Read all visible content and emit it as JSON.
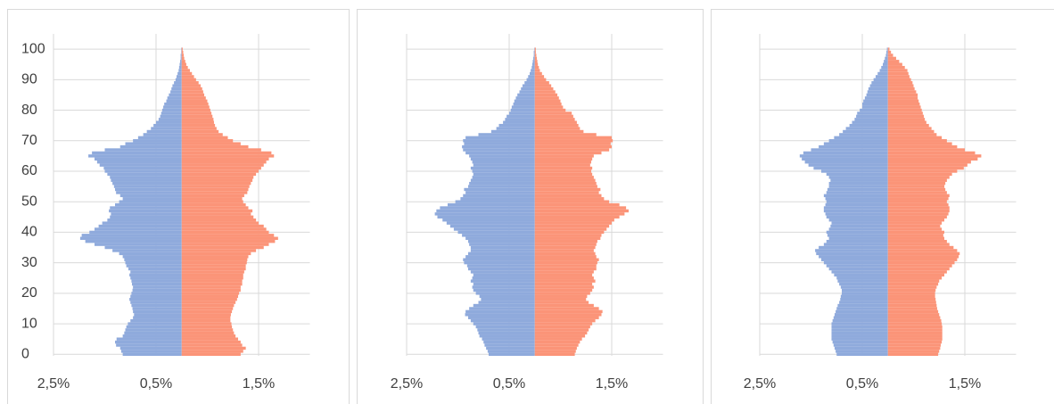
{
  "chart_data": [
    {
      "type": "bar",
      "orientation": "horizontal",
      "y": [
        0,
        1,
        2,
        3,
        4,
        5,
        6,
        7,
        8,
        9,
        10,
        11,
        12,
        13,
        14,
        15,
        16,
        17,
        18,
        19,
        20,
        21,
        22,
        23,
        24,
        25,
        26,
        27,
        28,
        29,
        30,
        31,
        32,
        33,
        34,
        35,
        36,
        37,
        38,
        39,
        40,
        41,
        42,
        43,
        44,
        45,
        46,
        47,
        48,
        49,
        50,
        51,
        52,
        53,
        54,
        55,
        56,
        57,
        58,
        59,
        60,
        61,
        62,
        63,
        64,
        65,
        66,
        67,
        68,
        69,
        70,
        71,
        72,
        73,
        74,
        75,
        76,
        77,
        78,
        79,
        80,
        81,
        82,
        83,
        84,
        85,
        86,
        87,
        88,
        89,
        90,
        91,
        92,
        93,
        94,
        95,
        96,
        97,
        98,
        99,
        100
      ],
      "series": [
        {
          "color": "#8faadc",
          "values": [
            -1.15,
            -1.18,
            -1.2,
            -1.28,
            -1.3,
            -1.27,
            -1.15,
            -1.12,
            -1.1,
            -1.08,
            -1.05,
            -1.0,
            -0.95,
            -0.93,
            -0.95,
            -0.96,
            -0.98,
            -1.0,
            -1.02,
            -1.0,
            -0.98,
            -0.96,
            -0.95,
            -0.97,
            -0.98,
            -1.0,
            -1.02,
            -1.0,
            -1.04,
            -1.08,
            -1.1,
            -1.12,
            -1.15,
            -1.22,
            -1.35,
            -1.5,
            -1.7,
            -1.88,
            -1.98,
            -1.95,
            -1.8,
            -1.7,
            -1.62,
            -1.55,
            -1.45,
            -1.4,
            -1.38,
            -1.42,
            -1.4,
            -1.3,
            -1.22,
            -1.15,
            -1.2,
            -1.28,
            -1.3,
            -1.32,
            -1.35,
            -1.38,
            -1.4,
            -1.45,
            -1.5,
            -1.52,
            -1.6,
            -1.65,
            -1.7,
            -1.82,
            -1.75,
            -1.5,
            -1.2,
            -1.1,
            -0.95,
            -0.85,
            -0.75,
            -0.68,
            -0.6,
            -0.55,
            -0.5,
            -0.45,
            -0.42,
            -0.4,
            -0.38,
            -0.36,
            -0.34,
            -0.3,
            -0.28,
            -0.25,
            -0.22,
            -0.2,
            -0.18,
            -0.15,
            -0.12,
            -0.1,
            -0.08,
            -0.06,
            -0.05,
            -0.04,
            -0.03,
            -0.02,
            -0.02,
            -0.01,
            -0.01
          ]
        },
        {
          "color": "#fb9478",
          "values": [
            1.15,
            1.2,
            1.25,
            1.18,
            1.15,
            1.1,
            1.05,
            1.02,
            1.0,
            0.98,
            0.97,
            0.95,
            0.95,
            0.96,
            0.98,
            1.0,
            1.02,
            1.05,
            1.08,
            1.1,
            1.12,
            1.15,
            1.15,
            1.18,
            1.18,
            1.2,
            1.2,
            1.22,
            1.25,
            1.25,
            1.27,
            1.28,
            1.3,
            1.35,
            1.45,
            1.6,
            1.7,
            1.82,
            1.88,
            1.8,
            1.7,
            1.65,
            1.6,
            1.5,
            1.45,
            1.4,
            1.35,
            1.38,
            1.3,
            1.25,
            1.2,
            1.18,
            1.22,
            1.28,
            1.3,
            1.32,
            1.35,
            1.38,
            1.4,
            1.45,
            1.5,
            1.55,
            1.6,
            1.65,
            1.7,
            1.8,
            1.75,
            1.55,
            1.3,
            1.15,
            1.0,
            0.9,
            0.8,
            0.72,
            0.68,
            0.65,
            0.63,
            0.62,
            0.6,
            0.58,
            0.56,
            0.54,
            0.52,
            0.5,
            0.47,
            0.44,
            0.42,
            0.4,
            0.37,
            0.33,
            0.28,
            0.24,
            0.2,
            0.16,
            0.12,
            0.09,
            0.07,
            0.05,
            0.04,
            0.03,
            0.02
          ]
        }
      ],
      "xlim": [
        -2.5,
        2.5
      ],
      "xticks": [
        {
          "value": -2.5,
          "label": "2,5%"
        },
        {
          "value": -0.5,
          "label": "0,5%"
        },
        {
          "value": 1.5,
          "label": "1,5%"
        }
      ],
      "ylim": [
        -0.5,
        105
      ],
      "yticks": [
        0,
        10,
        20,
        30,
        40,
        50,
        60,
        70,
        80,
        90,
        100
      ],
      "show_ytick_labels": true,
      "grid": true
    },
    {
      "type": "bar",
      "orientation": "horizontal",
      "y": [
        0,
        1,
        2,
        3,
        4,
        5,
        6,
        7,
        8,
        9,
        10,
        11,
        12,
        13,
        14,
        15,
        16,
        17,
        18,
        19,
        20,
        21,
        22,
        23,
        24,
        25,
        26,
        27,
        28,
        29,
        30,
        31,
        32,
        33,
        34,
        35,
        36,
        37,
        38,
        39,
        40,
        41,
        42,
        43,
        44,
        45,
        46,
        47,
        48,
        49,
        50,
        51,
        52,
        53,
        54,
        55,
        56,
        57,
        58,
        59,
        60,
        61,
        62,
        63,
        64,
        65,
        66,
        67,
        68,
        69,
        70,
        71,
        72,
        73,
        74,
        75,
        76,
        77,
        78,
        79,
        80,
        81,
        82,
        83,
        84,
        85,
        86,
        87,
        88,
        89,
        90,
        91,
        92,
        93,
        94,
        95,
        96,
        97,
        98,
        99,
        100
      ],
      "series": [
        {
          "color": "#8faadc",
          "values": [
            -0.9,
            -0.92,
            -0.95,
            -0.98,
            -1.0,
            -1.03,
            -1.08,
            -1.1,
            -1.12,
            -1.15,
            -1.2,
            -1.25,
            -1.3,
            -1.36,
            -1.35,
            -1.28,
            -1.2,
            -1.1,
            -1.05,
            -1.08,
            -1.15,
            -1.2,
            -1.22,
            -1.2,
            -1.25,
            -1.22,
            -1.2,
            -1.25,
            -1.3,
            -1.32,
            -1.38,
            -1.4,
            -1.35,
            -1.3,
            -1.25,
            -1.25,
            -1.28,
            -1.3,
            -1.35,
            -1.42,
            -1.5,
            -1.58,
            -1.65,
            -1.72,
            -1.8,
            -1.9,
            -1.95,
            -1.92,
            -1.85,
            -1.7,
            -1.55,
            -1.45,
            -1.4,
            -1.35,
            -1.38,
            -1.3,
            -1.28,
            -1.25,
            -1.22,
            -1.2,
            -1.22,
            -1.25,
            -1.2,
            -1.22,
            -1.25,
            -1.28,
            -1.35,
            -1.4,
            -1.42,
            -1.38,
            -1.4,
            -1.35,
            -1.1,
            -0.85,
            -0.75,
            -0.7,
            -0.62,
            -0.58,
            -0.55,
            -0.5,
            -0.47,
            -0.45,
            -0.42,
            -0.4,
            -0.37,
            -0.34,
            -0.3,
            -0.27,
            -0.24,
            -0.2,
            -0.16,
            -0.13,
            -0.1,
            -0.08,
            -0.06,
            -0.05,
            -0.04,
            -0.03,
            -0.02,
            -0.02,
            -0.01
          ]
        },
        {
          "color": "#fb9478",
          "values": [
            0.78,
            0.8,
            0.82,
            0.85,
            0.88,
            0.92,
            0.98,
            1.02,
            1.05,
            1.08,
            1.12,
            1.18,
            1.25,
            1.3,
            1.32,
            1.25,
            1.15,
            1.05,
            1.0,
            1.02,
            1.08,
            1.12,
            1.15,
            1.12,
            1.18,
            1.15,
            1.12,
            1.15,
            1.2,
            1.2,
            1.22,
            1.25,
            1.2,
            1.18,
            1.15,
            1.18,
            1.2,
            1.22,
            1.28,
            1.3,
            1.35,
            1.4,
            1.45,
            1.5,
            1.55,
            1.65,
            1.75,
            1.83,
            1.78,
            1.65,
            1.45,
            1.35,
            1.3,
            1.25,
            1.28,
            1.22,
            1.2,
            1.18,
            1.15,
            1.12,
            1.1,
            1.12,
            1.08,
            1.1,
            1.12,
            1.15,
            1.3,
            1.45,
            1.5,
            1.48,
            1.52,
            1.5,
            1.2,
            0.95,
            0.88,
            0.85,
            0.82,
            0.78,
            0.75,
            0.72,
            0.6,
            0.55,
            0.52,
            0.5,
            0.47,
            0.44,
            0.4,
            0.36,
            0.32,
            0.28,
            0.22,
            0.18,
            0.14,
            0.1,
            0.08,
            0.06,
            0.05,
            0.04,
            0.03,
            0.02,
            0.02
          ]
        }
      ],
      "xlim": [
        -2.5,
        2.5
      ],
      "xticks": [
        {
          "value": -2.5,
          "label": "2,5%"
        },
        {
          "value": -0.5,
          "label": "0,5%"
        },
        {
          "value": 1.5,
          "label": "1,5%"
        }
      ],
      "ylim": [
        -0.5,
        105
      ],
      "yticks": [
        0,
        10,
        20,
        30,
        40,
        50,
        60,
        70,
        80,
        90,
        100
      ],
      "show_ytick_labels": false,
      "grid": true
    },
    {
      "type": "bar",
      "orientation": "horizontal",
      "y": [
        0,
        1,
        2,
        3,
        4,
        5,
        6,
        7,
        8,
        9,
        10,
        11,
        12,
        13,
        14,
        15,
        16,
        17,
        18,
        19,
        20,
        21,
        22,
        23,
        24,
        25,
        26,
        27,
        28,
        29,
        30,
        31,
        32,
        33,
        34,
        35,
        36,
        37,
        38,
        39,
        40,
        41,
        42,
        43,
        44,
        45,
        46,
        47,
        48,
        49,
        50,
        51,
        52,
        53,
        54,
        55,
        56,
        57,
        58,
        59,
        60,
        61,
        62,
        63,
        64,
        65,
        66,
        67,
        68,
        69,
        70,
        71,
        72,
        73,
        74,
        75,
        76,
        77,
        78,
        79,
        80,
        81,
        82,
        83,
        84,
        85,
        86,
        87,
        88,
        89,
        90,
        91,
        92,
        93,
        94,
        95,
        96,
        97,
        98,
        99,
        100
      ],
      "series": [
        {
          "color": "#8faadc",
          "values": [
            -1.0,
            -1.02,
            -1.04,
            -1.06,
            -1.08,
            -1.1,
            -1.1,
            -1.1,
            -1.1,
            -1.1,
            -1.1,
            -1.08,
            -1.06,
            -1.04,
            -1.02,
            -1.0,
            -0.98,
            -0.95,
            -0.93,
            -0.92,
            -0.9,
            -0.9,
            -0.92,
            -0.95,
            -0.98,
            -1.0,
            -1.05,
            -1.1,
            -1.15,
            -1.2,
            -1.25,
            -1.3,
            -1.35,
            -1.4,
            -1.42,
            -1.35,
            -1.25,
            -1.2,
            -1.15,
            -1.18,
            -1.2,
            -1.15,
            -1.12,
            -1.1,
            -1.15,
            -1.2,
            -1.22,
            -1.25,
            -1.25,
            -1.22,
            -1.2,
            -1.22,
            -1.25,
            -1.2,
            -1.18,
            -1.15,
            -1.15,
            -1.12,
            -1.15,
            -1.2,
            -1.3,
            -1.45,
            -1.55,
            -1.62,
            -1.68,
            -1.72,
            -1.65,
            -1.5,
            -1.35,
            -1.25,
            -1.15,
            -1.05,
            -0.95,
            -0.88,
            -0.82,
            -0.75,
            -0.7,
            -0.65,
            -0.62,
            -0.6,
            -0.55,
            -0.5,
            -0.5,
            -0.48,
            -0.45,
            -0.42,
            -0.4,
            -0.38,
            -0.35,
            -0.32,
            -0.28,
            -0.24,
            -0.2,
            -0.16,
            -0.13,
            -0.1,
            -0.08,
            -0.06,
            -0.04,
            -0.03,
            -0.02
          ]
        },
        {
          "color": "#fb9478",
          "values": [
            0.98,
            1.0,
            1.02,
            1.03,
            1.05,
            1.06,
            1.06,
            1.06,
            1.06,
            1.06,
            1.05,
            1.04,
            1.02,
            1.0,
            0.98,
            0.96,
            0.95,
            0.94,
            0.93,
            0.92,
            0.92,
            0.93,
            0.95,
            0.98,
            1.0,
            1.05,
            1.1,
            1.15,
            1.2,
            1.25,
            1.3,
            1.35,
            1.38,
            1.4,
            1.35,
            1.28,
            1.2,
            1.15,
            1.1,
            1.08,
            1.1,
            1.05,
            1.02,
            1.05,
            1.1,
            1.15,
            1.18,
            1.2,
            1.2,
            1.18,
            1.15,
            1.18,
            1.2,
            1.15,
            1.12,
            1.1,
            1.12,
            1.15,
            1.2,
            1.25,
            1.35,
            1.48,
            1.55,
            1.62,
            1.75,
            1.82,
            1.7,
            1.5,
            1.35,
            1.25,
            1.15,
            1.05,
            0.95,
            0.9,
            0.85,
            0.8,
            0.75,
            0.72,
            0.7,
            0.68,
            0.66,
            0.64,
            0.62,
            0.6,
            0.58,
            0.58,
            0.55,
            0.52,
            0.5,
            0.48,
            0.45,
            0.42,
            0.4,
            0.38,
            0.33,
            0.28,
            0.22,
            0.16,
            0.1,
            0.06,
            0.03
          ]
        }
      ],
      "xlim": [
        -2.5,
        2.5
      ],
      "xticks": [
        {
          "value": -2.5,
          "label": "2,5%"
        },
        {
          "value": -0.5,
          "label": "0,5%"
        },
        {
          "value": 1.5,
          "label": "1,5%"
        }
      ],
      "ylim": [
        -0.5,
        105
      ],
      "yticks": [
        0,
        10,
        20,
        30,
        40,
        50,
        60,
        70,
        80,
        90,
        100
      ],
      "show_ytick_labels": false,
      "grid": true
    }
  ]
}
